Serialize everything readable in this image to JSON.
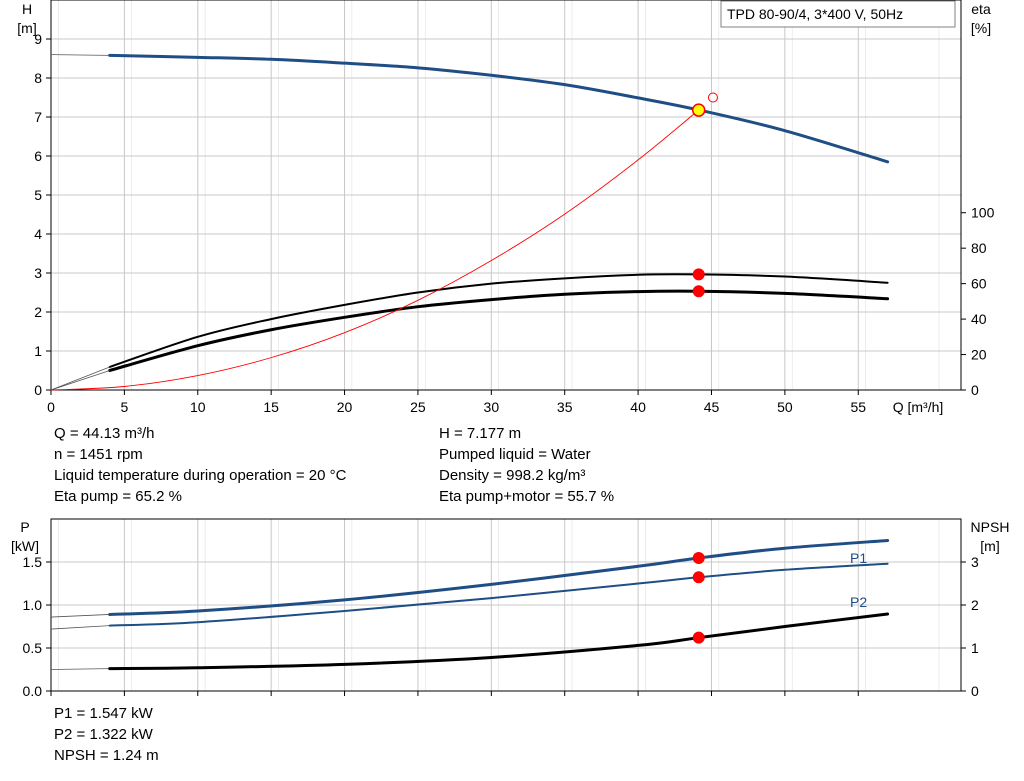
{
  "title_box": "TPD 80-90/4, 3*400 V, 50Hz",
  "colors": {
    "blue": "#1f4e85",
    "red": "#ff0000",
    "yellow": "#ffff00",
    "grid": "#c8c8c8"
  },
  "info_top_left": [
    "Q = 44.13 m³/h",
    "n = 1451 rpm",
    "Liquid temperature during operation = 20 °C",
    "Eta pump = 65.2 %"
  ],
  "info_top_right": [
    "H = 7.177 m",
    "Pumped liquid = Water",
    "Density = 998.2 kg/m³",
    "Eta pump+motor = 55.7 %"
  ],
  "info_bottom": [
    "P1 = 1.547 kW",
    "P2 = 1.322 kW",
    "NPSH = 1.24 m"
  ],
  "chart_data": [
    {
      "type": "line",
      "left_axis": {
        "label_line1": "H",
        "label_line2": "[m]",
        "range": [
          0,
          10
        ],
        "ticks": [
          "0",
          "1",
          "2",
          "3",
          "4",
          "5",
          "6",
          "7",
          "8",
          "9"
        ]
      },
      "right_axis": {
        "label_line1": "eta",
        "label_line2": "[%]",
        "range": [
          0,
          220
        ],
        "ticks": [
          "0",
          "20",
          "40",
          "60",
          "80",
          "100"
        ]
      },
      "x_axis": {
        "label": "Q [m³/h]",
        "range": [
          0,
          62
        ],
        "ticks": [
          "0",
          "5",
          "10",
          "15",
          "20",
          "25",
          "30",
          "35",
          "40",
          "45",
          "50",
          "55"
        ]
      },
      "grid": true,
      "series": [
        {
          "key": "H",
          "axis": "left",
          "x": [
            4,
            10,
            15,
            20,
            25,
            30,
            35,
            40,
            44.13,
            50,
            57
          ],
          "y": [
            8.58,
            8.53,
            8.48,
            8.38,
            8.26,
            8.07,
            7.83,
            7.49,
            7.18,
            6.65,
            5.85
          ],
          "extrapolated_start": [
            0,
            8.6
          ]
        },
        {
          "key": "eta_pump",
          "axis": "right",
          "x": [
            4,
            10,
            15,
            20,
            25,
            30,
            35,
            40,
            44.13,
            50,
            57
          ],
          "y": [
            13,
            30,
            40,
            48,
            55,
            60,
            63,
            65,
            65.2,
            64,
            60.5
          ]
        },
        {
          "key": "eta_pump_motor",
          "axis": "right",
          "x": [
            4,
            10,
            15,
            20,
            25,
            30,
            35,
            40,
            44.13,
            50,
            57
          ],
          "y": [
            11,
            25,
            34,
            41,
            47,
            51,
            54,
            55.5,
            55.7,
            54.5,
            51.5
          ]
        },
        {
          "key": "system_curve",
          "axis": "left",
          "x": [
            0,
            5,
            10,
            15,
            20,
            25,
            30,
            35,
            40,
            44.13
          ],
          "y": [
            0,
            0.09,
            0.37,
            0.83,
            1.47,
            2.3,
            3.32,
            4.51,
            5.9,
            7.18
          ]
        }
      ],
      "operating_points": [
        {
          "x": 44.13,
          "y": 7.177,
          "axis": "left",
          "style": "yellow"
        },
        {
          "x": 45.1,
          "y": 7.5,
          "axis": "left",
          "style": "hollow"
        },
        {
          "x": 44.13,
          "y": 65.2,
          "axis": "right",
          "style": "red"
        },
        {
          "x": 44.13,
          "y": 55.7,
          "axis": "right",
          "style": "red"
        }
      ]
    },
    {
      "type": "line",
      "left_axis": {
        "label_line1": "P",
        "label_line2": "[kW]",
        "range": [
          0,
          2.0
        ],
        "ticks": [
          "0.0",
          "0.5",
          "1.0",
          "1.5"
        ]
      },
      "right_axis": {
        "label_line1": "NPSH",
        "label_line2": "[m]",
        "range": [
          0,
          4.0
        ],
        "ticks": [
          "0",
          "1",
          "2",
          "3"
        ]
      },
      "x_axis": {
        "range": [
          0,
          62
        ]
      },
      "grid": true,
      "series": [
        {
          "key": "P1",
          "name": "P1",
          "axis": "left",
          "x": [
            4,
            10,
            20,
            30,
            40,
            44.13,
            50,
            57
          ],
          "y": [
            0.89,
            0.93,
            1.06,
            1.24,
            1.45,
            1.547,
            1.66,
            1.75
          ],
          "extrapolated_start": [
            0,
            0.86
          ]
        },
        {
          "key": "P2",
          "name": "P2",
          "axis": "left",
          "x": [
            4,
            10,
            20,
            30,
            40,
            44.13,
            50,
            57
          ],
          "y": [
            0.76,
            0.8,
            0.93,
            1.08,
            1.25,
            1.322,
            1.41,
            1.48
          ],
          "extrapolated_start": [
            0,
            0.72
          ]
        },
        {
          "key": "NPSH",
          "axis": "right",
          "x": [
            4,
            10,
            20,
            30,
            40,
            44.13,
            50,
            57
          ],
          "y": [
            0.52,
            0.54,
            0.62,
            0.78,
            1.06,
            1.24,
            1.5,
            1.79
          ],
          "extrapolated_start": [
            0,
            0.5
          ]
        }
      ],
      "operating_points": [
        {
          "x": 44.13,
          "y": 1.547,
          "axis": "left",
          "style": "red"
        },
        {
          "x": 44.13,
          "y": 1.322,
          "axis": "left",
          "style": "red"
        },
        {
          "x": 44.13,
          "y": 1.24,
          "axis": "right",
          "style": "red"
        }
      ]
    }
  ]
}
